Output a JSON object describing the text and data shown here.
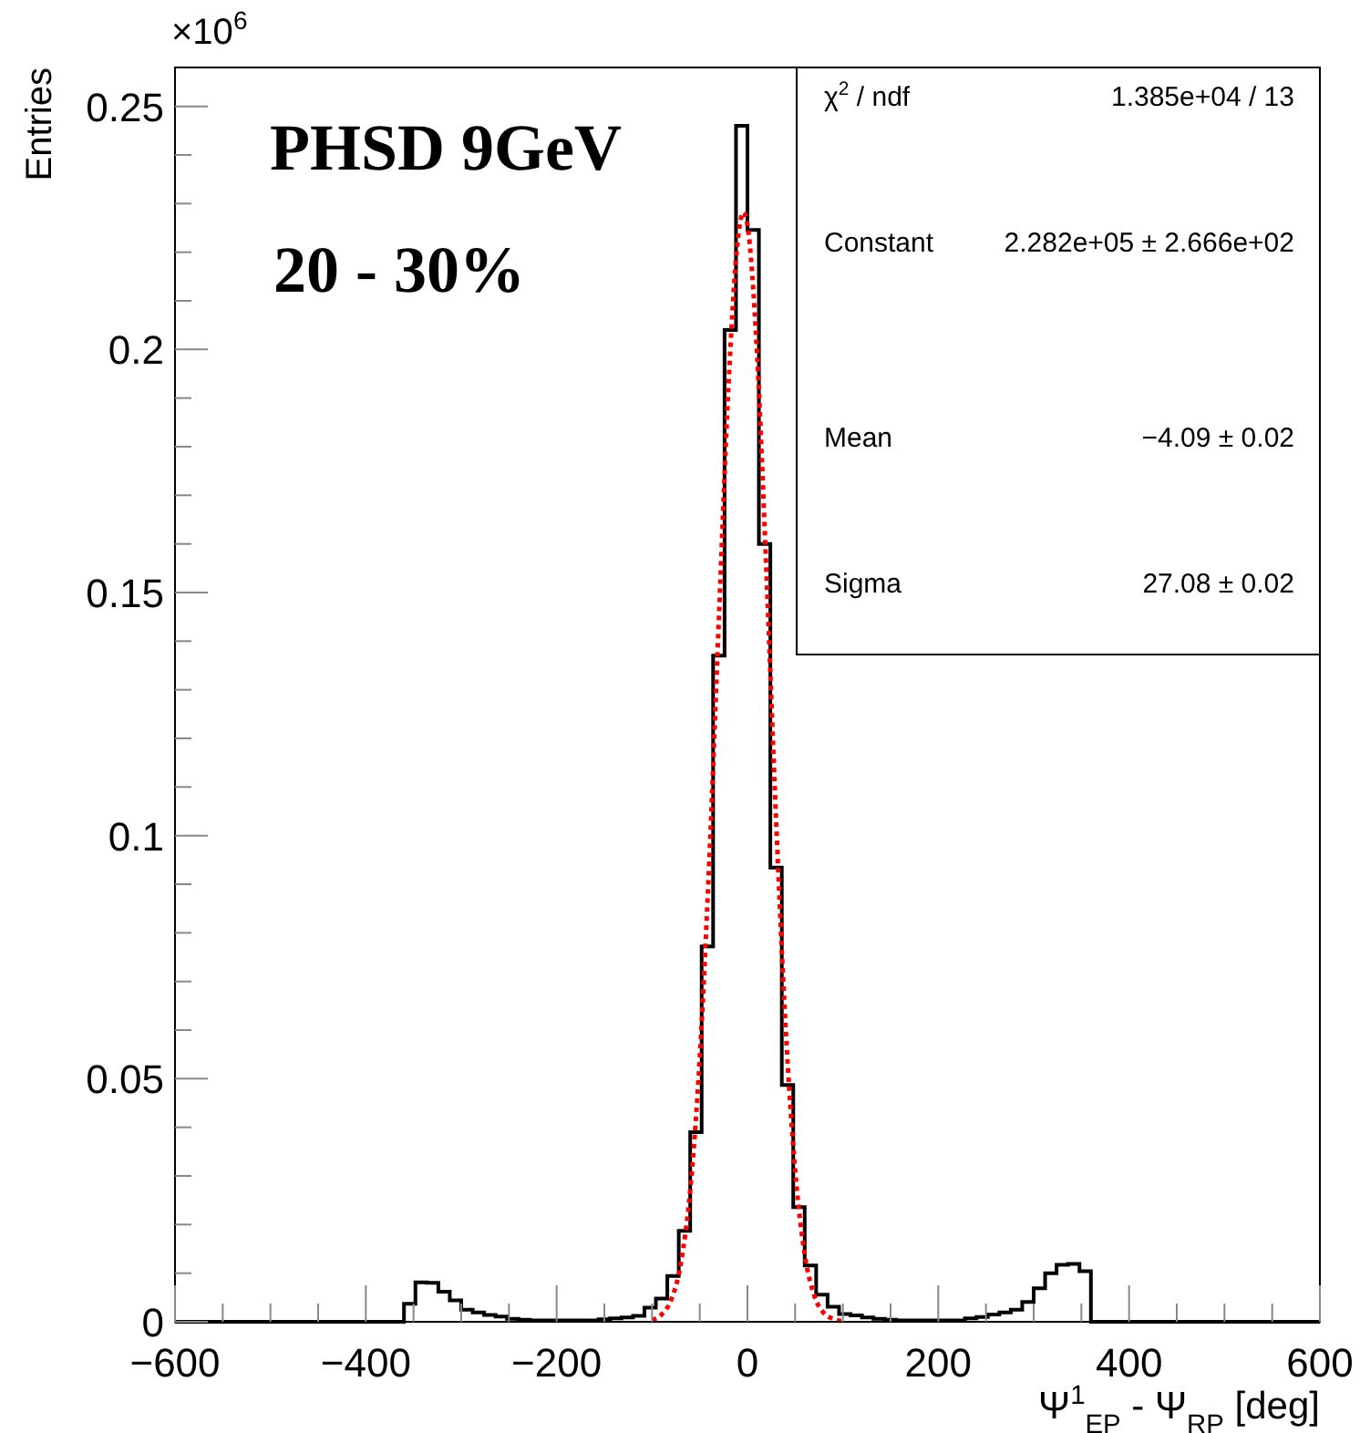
{
  "chart_data": {
    "type": "histogram",
    "title": "PHSD 9GeV",
    "subtitle": "20 - 30%",
    "xlabel": "Ψ$^{1}$$_{EP}$ - Ψ$_{RP}$ [deg]",
    "ylabel": "Entries",
    "annotations": [
      "×10$^{6}$",
      "χ$^{2}$ / ndf",
      "1.385e+04 / 13",
      "Constant",
      "2.282e+05 ± 2.666e+02",
      "Mean",
      "−4.09 ± 0.02",
      "Sigma",
      "27.08 ± 0.02"
    ],
    "color": "#000000",
    "bins": [
      -600,
      -588,
      -576,
      -564,
      -552,
      -540,
      -528,
      -516,
      -504,
      -492,
      -480,
      -468,
      -456,
      -444,
      -432,
      -420,
      -408,
      -396,
      -384,
      -372,
      -360,
      -348,
      -336,
      -324,
      -312,
      -300,
      -288,
      -276,
      -264,
      -252,
      -240,
      -228,
      -216,
      -204,
      -192,
      -180,
      -168,
      -156,
      -144,
      -132,
      -120,
      -108,
      -96,
      -84,
      -72,
      -60,
      -48,
      -36,
      -24,
      -12,
      0,
      12,
      24,
      36,
      48,
      60,
      72,
      84,
      96,
      108,
      120,
      132,
      144,
      156,
      168,
      180,
      192,
      204,
      216,
      228,
      240,
      252,
      264,
      276,
      288,
      300,
      312,
      324,
      336,
      348,
      360,
      372,
      384,
      396,
      408,
      420,
      432,
      444,
      456,
      468,
      480,
      492,
      504,
      516,
      528,
      540,
      552,
      564,
      576,
      588,
      600
    ],
    "values": [
      0,
      0,
      0,
      0,
      0,
      0,
      0,
      0,
      0,
      0,
      0,
      0,
      0,
      0,
      0,
      0,
      0,
      0,
      0,
      0,
      0.0037,
      0.0081,
      0.008,
      0.0062,
      0.0044,
      0.0025,
      0.0019,
      0.0014,
      0.0011,
      0.0006,
      0.0004,
      0.0003,
      0.0003,
      0.0003,
      0.0003,
      0.0003,
      0.0003,
      0.0005,
      0.0007,
      0.0009,
      0.0012,
      0.0029,
      0.0048,
      0.0094,
      0.0187,
      0.039,
      0.0772,
      0.137,
      0.204,
      0.246,
      0.2246,
      0.16,
      0.0934,
      0.0487,
      0.0236,
      0.0116,
      0.0056,
      0.0031,
      0.0016,
      0.0013,
      0.0009,
      0.0006,
      0.0004,
      0.0003,
      0.0003,
      0.0003,
      0.0003,
      0.0003,
      0.0003,
      0.0007,
      0.001,
      0.0015,
      0.0019,
      0.0025,
      0.0041,
      0.0069,
      0.01,
      0.0117,
      0.0119,
      0.0104,
      0,
      0,
      0,
      0,
      0,
      0,
      0,
      0,
      0,
      0,
      0,
      0,
      0,
      0,
      0,
      0,
      0,
      0,
      0,
      0
    ],
    "series": [
      {
        "type": "line",
        "color": "#ff0000",
        "line_style": "dotted",
        "x": [
          -100,
          -90,
          -80,
          -70,
          -60,
          -50,
          -40,
          -30,
          -20,
          -10,
          -4,
          0,
          10,
          20,
          30,
          40,
          50,
          60,
          70,
          80,
          90,
          100
        ],
        "values": [
          0.0004,
          0.0015,
          0.0045,
          0.0118,
          0.0271,
          0.0542,
          0.0948,
          0.1444,
          0.192,
          0.2228,
          0.2282,
          0.2256,
          0.1993,
          0.1536,
          0.1033,
          0.0607,
          0.0311,
          0.0139,
          0.0054,
          0.0018,
          0.0006,
          0.0001
        ]
      }
    ],
    "xlim": [
      -600,
      600
    ],
    "ylim": [
      0,
      0.258
    ],
    "xticks": [
      -600,
      {
        "value": -550,
        "label": null
      },
      {
        "value": -500,
        "label": null
      },
      {
        "value": -450,
        "label": null
      },
      -400,
      {
        "value": -350,
        "label": null
      },
      {
        "value": -300,
        "label": null
      },
      {
        "value": -250,
        "label": null
      },
      -200,
      {
        "value": -150,
        "label": null
      },
      {
        "value": -100,
        "label": null
      },
      {
        "value": -50,
        "label": null
      },
      0,
      {
        "value": 50,
        "label": null
      },
      {
        "value": 100,
        "label": null
      },
      {
        "value": 150,
        "label": null
      },
      200,
      {
        "value": 250,
        "label": null
      },
      {
        "value": 300,
        "label": null
      },
      {
        "value": 350,
        "label": null
      },
      400,
      {
        "value": 450,
        "label": null
      },
      {
        "value": 500,
        "label": null
      },
      {
        "value": 550,
        "label": null
      },
      600
    ],
    "yticks": [
      0,
      {
        "value": 0.01,
        "label": null
      },
      {
        "value": 0.02,
        "label": null
      },
      {
        "value": 0.03,
        "label": null
      },
      {
        "value": 0.04,
        "label": null
      },
      0.05,
      {
        "value": 0.06,
        "label": null
      },
      {
        "value": 0.07,
        "label": null
      },
      {
        "value": 0.08,
        "label": null
      },
      {
        "value": 0.09,
        "label": null
      },
      0.1,
      {
        "value": 0.11,
        "label": null
      },
      {
        "value": 0.12,
        "label": null
      },
      {
        "value": 0.13,
        "label": null
      },
      {
        "value": 0.14,
        "label": null
      },
      0.15,
      {
        "value": 0.16,
        "label": null
      },
      {
        "value": 0.17,
        "label": null
      },
      {
        "value": 0.18,
        "label": null
      },
      {
        "value": 0.19,
        "label": null
      },
      0.2,
      {
        "value": 0.21,
        "label": null
      },
      {
        "value": 0.22,
        "label": null
      },
      {
        "value": 0.23,
        "label": null
      },
      {
        "value": 0.24,
        "label": null
      },
      0.25
    ],
    "grid": false
  }
}
